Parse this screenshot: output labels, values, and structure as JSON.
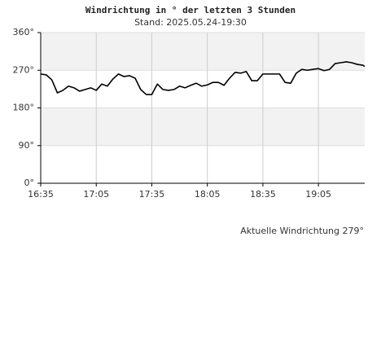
{
  "chart_data": {
    "type": "line",
    "title": "Windrichtung in ° der letzten 3 Stunden",
    "subtitle": "Stand: 2025.05.24-19:30",
    "annotation": "Aktuelle Windrichtung 279°",
    "x": [
      "16:35",
      "16:38",
      "16:41",
      "16:44",
      "16:47",
      "16:50",
      "16:53",
      "16:56",
      "16:59",
      "17:02",
      "17:05",
      "17:08",
      "17:11",
      "17:14",
      "17:17",
      "17:20",
      "17:23",
      "17:26",
      "17:29",
      "17:32",
      "17:35",
      "17:38",
      "17:41",
      "17:44",
      "17:47",
      "17:50",
      "17:53",
      "17:56",
      "17:59",
      "18:02",
      "18:05",
      "18:08",
      "18:11",
      "18:14",
      "18:17",
      "18:20",
      "18:23",
      "18:26",
      "18:29",
      "18:32",
      "18:35",
      "18:38",
      "18:41",
      "18:44",
      "18:47",
      "18:50",
      "18:53",
      "18:56",
      "18:59",
      "19:02",
      "19:05",
      "19:08",
      "19:11",
      "19:14",
      "19:17",
      "19:20",
      "19:23",
      "19:26",
      "19:29",
      "19:30"
    ],
    "series": [
      {
        "color": "#000000",
        "values": [
          261,
          259,
          247,
          216,
          222,
          232,
          228,
          220,
          224,
          228,
          222,
          237,
          232,
          249,
          261,
          255,
          257,
          251,
          224,
          212,
          212,
          237,
          224,
          222,
          224,
          232,
          228,
          234,
          239,
          232,
          235,
          241,
          241,
          234,
          251,
          265,
          263,
          267,
          245,
          245,
          261,
          261,
          261,
          261,
          241,
          239,
          263,
          272,
          270,
          272,
          274,
          269,
          272,
          286,
          288,
          290,
          288,
          284,
          282,
          279
        ]
      }
    ],
    "xlim": [
      "16:35",
      "19:30"
    ],
    "xticks": [
      "16:35",
      "17:05",
      "17:35",
      "18:05",
      "18:35",
      "19:05"
    ],
    "ylim": [
      0,
      360
    ],
    "yticks": [
      {
        "value": 0,
        "label": "0°"
      },
      {
        "value": 90,
        "label": "90°"
      },
      {
        "value": 180,
        "label": "180°"
      },
      {
        "value": 270,
        "label": "270°"
      },
      {
        "value": 360,
        "label": "360°"
      }
    ],
    "grid": true
  }
}
